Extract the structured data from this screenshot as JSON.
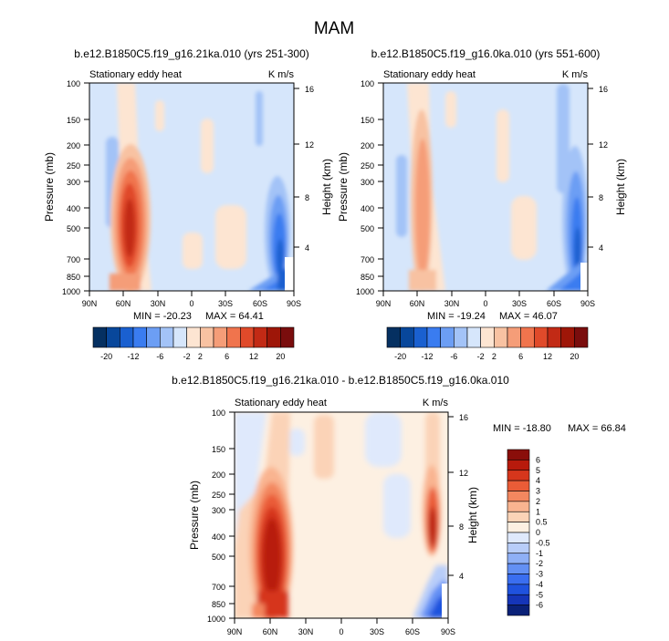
{
  "figure": {
    "title": "MAM"
  },
  "colors": {
    "panel_scale_colors": [
      "#053061",
      "#08479b",
      "#1a60d0",
      "#3a7cf0",
      "#6c9ef4",
      "#a3c3f7",
      "#d6e6fb",
      "#fde5d2",
      "#f8c2a2",
      "#f59d78",
      "#f0744d",
      "#e04a2a",
      "#c22a15",
      "#9e1608",
      "#7a0d0d"
    ],
    "diff_scale_colors": [
      "#0a2178",
      "#1535b8",
      "#1f52de",
      "#3a6ef0",
      "#6390f4",
      "#8fb0f6",
      "#b8cdf9",
      "#dfe9fc",
      "#fdf0e2",
      "#fbd3b7",
      "#f9b490",
      "#f3875f",
      "#ea5c37",
      "#d6361c",
      "#b81a0c",
      "#8a0e0a"
    ]
  },
  "chart_data": [
    {
      "type": "heatmap",
      "title": "b.e12.B1850C5.f19_g16.21ka.010 (yrs 251-300)",
      "subtitle_left": "Stationary eddy heat",
      "subtitle_right": "K m/s",
      "ylabel": "Pressure (mb)",
      "ylabel_right": "Height (km)",
      "x_ticks": [
        "90N",
        "60N",
        "30N",
        "0",
        "30S",
        "60S",
        "90S"
      ],
      "y_ticks": [
        100,
        150,
        200,
        250,
        300,
        400,
        500,
        700,
        850,
        1000
      ],
      "y_ticks_right": [
        4,
        8,
        12,
        16
      ],
      "ylim": [
        1000,
        100
      ],
      "scale": "log",
      "min_label": "MIN = -20.23",
      "max_label": "MAX = 64.41",
      "colorbar_labels": [
        "-20",
        "-12",
        "-6",
        "-2",
        "2",
        "6",
        "12",
        "20"
      ],
      "colorbar_levels": [
        -20,
        -16,
        -12,
        -8,
        -6,
        -4,
        -2,
        0,
        2,
        4,
        6,
        8,
        12,
        16,
        20
      ]
    },
    {
      "type": "heatmap",
      "title": "b.e12.B1850C5.f19_g16.0ka.010 (yrs 551-600)",
      "subtitle_left": "Stationary eddy heat",
      "subtitle_right": "K m/s",
      "ylabel": "Pressure (mb)",
      "ylabel_right": "Height (km)",
      "x_ticks": [
        "90N",
        "60N",
        "30N",
        "0",
        "30S",
        "60S",
        "90S"
      ],
      "y_ticks": [
        100,
        150,
        200,
        250,
        300,
        400,
        500,
        700,
        850,
        1000
      ],
      "y_ticks_right": [
        4,
        8,
        12,
        16
      ],
      "ylim": [
        1000,
        100
      ],
      "scale": "log",
      "min_label": "MIN = -19.24",
      "max_label": "MAX = 46.07",
      "colorbar_labels": [
        "-20",
        "-12",
        "-6",
        "-2",
        "2",
        "6",
        "12",
        "20"
      ],
      "colorbar_levels": [
        -20,
        -16,
        -12,
        -8,
        -6,
        -4,
        -2,
        0,
        2,
        4,
        6,
        8,
        12,
        16,
        20
      ]
    },
    {
      "type": "heatmap",
      "title": "b.e12.B1850C5.f19_g16.21ka.010 - b.e12.B1850C5.f19_g16.0ka.010",
      "subtitle_left": "Stationary eddy heat",
      "subtitle_right": "K m/s",
      "ylabel": "Pressure (mb)",
      "ylabel_right": "Height (km)",
      "x_ticks": [
        "90N",
        "60N",
        "30N",
        "0",
        "30S",
        "60S",
        "90S"
      ],
      "y_ticks": [
        100,
        150,
        200,
        250,
        300,
        400,
        500,
        700,
        850,
        1000
      ],
      "y_ticks_right": [
        4,
        8,
        12,
        16
      ],
      "ylim": [
        1000,
        100
      ],
      "scale": "log",
      "min_label": "MIN = -18.80",
      "max_label": "MAX = 66.84",
      "colorbar_labels": [
        "6",
        "5",
        "4",
        "3",
        "2",
        "1",
        "0.5",
        "0",
        "-0.5",
        "-1",
        "-2",
        "-3",
        "-4",
        "-5",
        "-6"
      ],
      "colorbar_levels": [
        -6,
        -5,
        -4,
        -3,
        -2,
        -1,
        -0.5,
        0,
        0.5,
        1,
        2,
        3,
        4,
        5,
        6
      ]
    }
  ]
}
